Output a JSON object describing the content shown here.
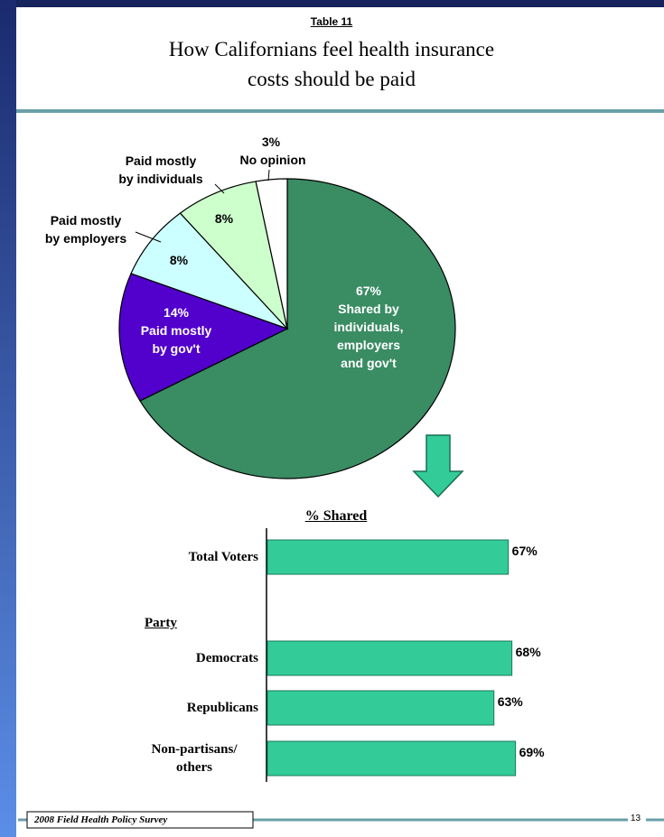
{
  "header": {
    "table_label": "Table 11",
    "title": "How Californians feel health insurance\ncosts should be paid"
  },
  "chart_data": [
    {
      "type": "pie",
      "categories": [
        "Shared by\nindividuals,\nemployers\nand gov't",
        "Paid mostly\nby gov't",
        "Paid mostly\nby employers",
        "Paid mostly\nby individuals",
        "No opinion"
      ],
      "values": [
        67,
        14,
        8,
        8,
        3
      ],
      "value_labels": [
        "67%",
        "14%",
        "8%",
        "8%",
        "3%"
      ],
      "colors": [
        "#3a8c63",
        "#5200cc",
        "#ccffff",
        "#ccffcc",
        "#ffffff"
      ]
    },
    {
      "type": "barh",
      "title": "% Shared",
      "categories": [
        "Total Voters",
        "Democrats",
        "Republicans",
        "Non-partisans/\nothers"
      ],
      "group_label": "Party",
      "values": [
        67,
        68,
        63,
        69
      ],
      "value_labels": [
        "67%",
        "68%",
        "63%",
        "69%"
      ],
      "color": "#33cc99",
      "xlim": [
        0,
        100
      ]
    }
  ],
  "footer": {
    "source": "2008 Field Health Policy Survey",
    "page": "13"
  }
}
